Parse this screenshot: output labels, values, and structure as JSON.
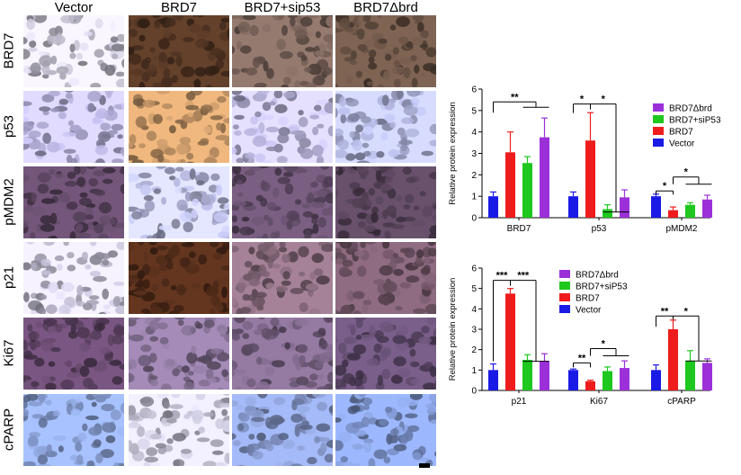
{
  "columns": [
    "Vector",
    "BRD7",
    "BRD7+sip53",
    "BRD7Δbrd"
  ],
  "rows": [
    "BRD7",
    "p53",
    "pMDM2",
    "p21",
    "Ki67",
    "cPARP"
  ],
  "stain_colors": {
    "BRD7": [
      "#b9b6c6",
      "#4a3020",
      "#6e5a52",
      "#5e4a3e"
    ],
    "p53": [
      "#a7a3cc",
      "#b2885e",
      "#aaa6cc",
      "#9fa3c8"
    ],
    "pMDM2": [
      "#55405a",
      "#a9abd0",
      "#5a4660",
      "#4e3c50"
    ],
    "p21": [
      "#b7b3c8",
      "#4a2818",
      "#7a6070",
      "#6a5060"
    ],
    "Ki67": [
      "#5a4060",
      "#7a6888",
      "#6e5a78",
      "#5a4666"
    ],
    "cPARP": [
      "#7c90c0",
      "#b4b2c4",
      "#7a8ab8",
      "#7488bc"
    ]
  },
  "chart_data": [
    {
      "type": "bar",
      "ylabel": "Relative protein expression",
      "ylim": [
        0,
        6
      ],
      "yticks": [
        0,
        1,
        2,
        3,
        4,
        5,
        6
      ],
      "categories": [
        "BRD7",
        "p53",
        "pMDM2"
      ],
      "series": [
        {
          "name": "Vector",
          "color": "#1a1ae6",
          "values": [
            1.0,
            1.0,
            1.0
          ],
          "errors": [
            0.2,
            0.2,
            0.1
          ]
        },
        {
          "name": "BRD7",
          "color": "#ee1c1c",
          "values": [
            3.05,
            3.6,
            0.35
          ],
          "errors": [
            0.95,
            1.3,
            0.15
          ]
        },
        {
          "name": "BRD7+siP53",
          "color": "#1ec81e",
          "values": [
            2.55,
            0.4,
            0.6
          ],
          "errors": [
            0.3,
            0.2,
            0.1
          ]
        },
        {
          "name": "BRD7Δbrd",
          "color": "#9b30d9",
          "values": [
            3.75,
            0.95,
            0.85
          ],
          "errors": [
            0.9,
            0.35,
            0.2
          ]
        }
      ],
      "legend_order": [
        "BRD7Δbrd",
        "BRD7+siP53",
        "BRD7",
        "Vector"
      ],
      "significance": [
        "**",
        "*",
        "*",
        "*",
        "*"
      ]
    },
    {
      "type": "bar",
      "ylabel": "Relative protein expression",
      "ylim": [
        0,
        6
      ],
      "yticks": [
        0,
        1,
        2,
        3,
        4,
        5,
        6
      ],
      "categories": [
        "p21",
        "Ki67",
        "cPARP"
      ],
      "series": [
        {
          "name": "Vector",
          "color": "#1a1ae6",
          "values": [
            1.0,
            1.0,
            1.0
          ],
          "errors": [
            0.3,
            0.05,
            0.25
          ]
        },
        {
          "name": "BRD7",
          "color": "#ee1c1c",
          "values": [
            4.75,
            0.45,
            3.0
          ],
          "errors": [
            0.25,
            0.05,
            0.45
          ]
        },
        {
          "name": "BRD7+siP53",
          "color": "#1ec81e",
          "values": [
            1.5,
            0.95,
            1.45
          ],
          "errors": [
            0.25,
            0.2,
            0.5
          ]
        },
        {
          "name": "BRD7Δbrd",
          "color": "#9b30d9",
          "values": [
            1.45,
            1.1,
            1.35
          ],
          "errors": [
            0.35,
            0.35,
            0.2
          ]
        }
      ],
      "legend_order": [
        "BRD7Δbrd",
        "BRD7+siP53",
        "BRD7",
        "Vector"
      ],
      "significance": [
        "***",
        "***",
        "**",
        "*",
        "**",
        "*"
      ]
    }
  ]
}
